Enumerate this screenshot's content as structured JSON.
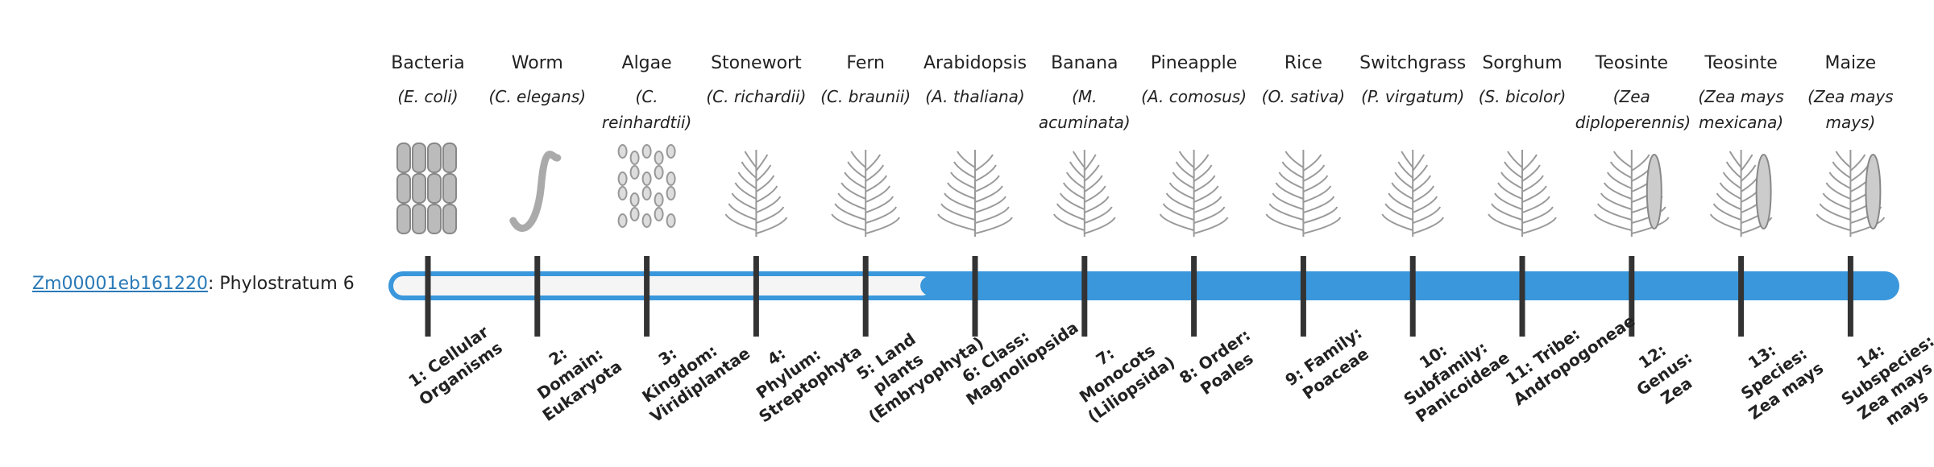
{
  "gene": {
    "id": "Zm00001eb161220",
    "label": ": Phylostratum 6",
    "stratum": 6
  },
  "organisms": [
    {
      "name": "Bacteria",
      "species": "(E. coli)",
      "stratum": "1: Cellular Organisms"
    },
    {
      "name": "Worm",
      "species": "(C. elegans)",
      "stratum": "2: Domain: Eukaryota"
    },
    {
      "name": "Algae",
      "species": "(C. reinhardtii)",
      "stratum": "3: Kingdom: Viridiplantae"
    },
    {
      "name": "Stonewort",
      "species": "(C. richardii)",
      "stratum": "4: Phylum: Streptophyta"
    },
    {
      "name": "Fern",
      "species": "(C. braunii)",
      "stratum": "5: Land plants (Embryophyta)"
    },
    {
      "name": "Arabidopsis",
      "species": "(A. thaliana)",
      "stratum": "6: Class: Magnoliopsida"
    },
    {
      "name": "Banana",
      "species": "(M. acuminata)",
      "stratum": "7: Monocots (Liliopsida)"
    },
    {
      "name": "Pineapple",
      "species": "(A. comosus)",
      "stratum": "8: Order: Poales"
    },
    {
      "name": "Rice",
      "species": "(O. sativa)",
      "stratum": "9: Family: Poaceae"
    },
    {
      "name": "Switchgrass",
      "species": "(P. virgatum)",
      "stratum": "10: Subfamily: Panicoideae"
    },
    {
      "name": "Sorghum",
      "species": "(S. bicolor)",
      "stratum": "11: Tribe: Andropogoneae"
    },
    {
      "name": "Teosinte",
      "species": "(Zea diploperennis)",
      "stratum": "12: Genus: Zea"
    },
    {
      "name": "Teosinte",
      "species": "(Zea mays mexicana)",
      "stratum": "13: Species: Zea mays"
    },
    {
      "name": "Maize",
      "species": "(Zea mays mays)",
      "stratum": "14: Subspecies: Zea mays mays"
    }
  ]
}
